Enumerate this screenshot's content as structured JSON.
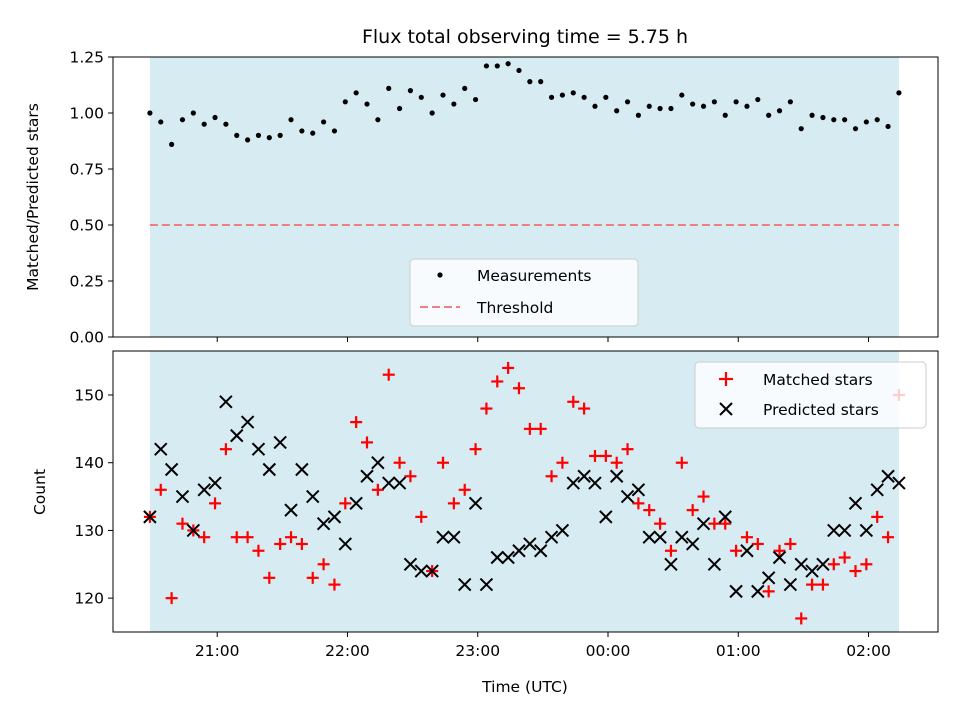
{
  "chart_data": [
    {
      "type": "scatter",
      "title": "Flux total observing time = 5.75 h",
      "ylabel": "Matched/Predicted stars",
      "xlabel": "",
      "ylim": [
        0,
        1.25
      ],
      "yticks": [
        0.0,
        0.25,
        0.5,
        0.75,
        1.0,
        1.25
      ],
      "ytick_labels": [
        "0.00",
        "0.25",
        "0.50",
        "0.75",
        "1.00",
        "1.25"
      ],
      "observing_window": [
        "20:29",
        "02:14"
      ],
      "legend": {
        "position": "lower-center",
        "entries": [
          "Measurements",
          "Threshold"
        ]
      },
      "series": [
        {
          "name": "Measurements",
          "color": "#000000",
          "marker": "dot",
          "x": [
            "20:29",
            "20:34",
            "20:39",
            "20:44",
            "20:49",
            "20:54",
            "20:59",
            "21:04",
            "21:09",
            "21:14",
            "21:19",
            "21:24",
            "21:29",
            "21:34",
            "21:39",
            "21:44",
            "21:49",
            "21:54",
            "21:59",
            "22:04",
            "22:09",
            "22:14",
            "22:19",
            "22:24",
            "22:29",
            "22:34",
            "22:39",
            "22:44",
            "22:49",
            "22:54",
            "22:59",
            "23:04",
            "23:09",
            "23:14",
            "23:19",
            "23:24",
            "23:29",
            "23:34",
            "23:39",
            "23:44",
            "23:49",
            "23:54",
            "23:59",
            "00:04",
            "00:09",
            "00:14",
            "00:19",
            "00:24",
            "00:29",
            "00:34",
            "00:39",
            "00:44",
            "00:49",
            "00:54",
            "00:59",
            "01:04",
            "01:09",
            "01:14",
            "01:19",
            "01:24",
            "01:29",
            "01:34",
            "01:39",
            "01:44",
            "01:49",
            "01:54",
            "01:59",
            "02:04",
            "02:09",
            "02:14"
          ],
          "y": [
            1.0,
            0.96,
            0.86,
            0.97,
            1.0,
            0.95,
            0.98,
            0.95,
            0.9,
            0.88,
            0.9,
            0.89,
            0.9,
            0.97,
            0.92,
            0.91,
            0.96,
            0.92,
            1.05,
            1.09,
            1.04,
            0.97,
            1.11,
            1.02,
            1.1,
            1.07,
            1.0,
            1.08,
            1.04,
            1.11,
            1.06,
            1.21,
            1.21,
            1.22,
            1.19,
            1.14,
            1.14,
            1.07,
            1.08,
            1.09,
            1.07,
            1.03,
            1.07,
            1.01,
            1.05,
            0.99,
            1.03,
            1.02,
            1.02,
            1.08,
            1.04,
            1.03,
            1.05,
            0.99,
            1.05,
            1.03,
            1.06,
            0.99,
            1.01,
            1.05,
            0.93,
            0.99,
            0.98,
            0.97,
            0.97,
            0.93,
            0.96,
            0.97,
            0.94,
            1.09
          ]
        },
        {
          "name": "Threshold",
          "color": "#f08080",
          "style": "dashed",
          "value": 0.5
        }
      ]
    },
    {
      "type": "scatter",
      "title": "",
      "ylabel": "Count",
      "xlabel": "Time (UTC)",
      "ylim": [
        115,
        156.5
      ],
      "yticks": [
        120,
        130,
        140,
        150
      ],
      "ytick_labels": [
        "120",
        "130",
        "140",
        "150"
      ],
      "xlim": [
        "20:12",
        "02:32"
      ],
      "xticks": [
        "21:00",
        "22:00",
        "23:00",
        "00:00",
        "01:00",
        "02:00"
      ],
      "xtick_labels": [
        "21:00",
        "22:00",
        "23:00",
        "00:00",
        "01:00",
        "02:00"
      ],
      "observing_window": [
        "20:29",
        "02:14"
      ],
      "legend": {
        "position": "top-right",
        "entries": [
          "Matched stars",
          "Predicted stars"
        ]
      },
      "series": [
        {
          "name": "Matched stars",
          "color": "#ff0000",
          "marker": "plus",
          "x": [
            "20:29",
            "20:34",
            "20:39",
            "20:44",
            "20:49",
            "20:54",
            "20:59",
            "21:04",
            "21:09",
            "21:14",
            "21:19",
            "21:24",
            "21:29",
            "21:34",
            "21:39",
            "21:44",
            "21:49",
            "21:54",
            "21:59",
            "22:04",
            "22:09",
            "22:14",
            "22:19",
            "22:24",
            "22:29",
            "22:34",
            "22:39",
            "22:44",
            "22:49",
            "22:54",
            "22:59",
            "23:04",
            "23:09",
            "23:14",
            "23:19",
            "23:24",
            "23:29",
            "23:34",
            "23:39",
            "23:44",
            "23:49",
            "23:54",
            "23:59",
            "00:04",
            "00:09",
            "00:14",
            "00:19",
            "00:24",
            "00:29",
            "00:34",
            "00:39",
            "00:44",
            "00:49",
            "00:54",
            "00:59",
            "01:04",
            "01:09",
            "01:14",
            "01:19",
            "01:24",
            "01:29",
            "01:34",
            "01:39",
            "01:44",
            "01:49",
            "01:54",
            "01:59",
            "02:04",
            "02:09",
            "02:14"
          ],
          "y": [
            132,
            136,
            120,
            131,
            130,
            129,
            134,
            142,
            129,
            129,
            127,
            123,
            128,
            129,
            128,
            123,
            125,
            122,
            134,
            146,
            143,
            136,
            153,
            140,
            138,
            132,
            124,
            140,
            134,
            136,
            142,
            148,
            152,
            154,
            151,
            145,
            145,
            138,
            140,
            149,
            148,
            141,
            141,
            140,
            142,
            134,
            133,
            131,
            127,
            140,
            133,
            135,
            131,
            131,
            127,
            129,
            128,
            121,
            127,
            128,
            117,
            122,
            122,
            125,
            126,
            124,
            125,
            132,
            129,
            150
          ]
        },
        {
          "name": "Predicted stars",
          "color": "#000000",
          "marker": "x",
          "x": [
            "20:29",
            "20:34",
            "20:39",
            "20:44",
            "20:49",
            "20:54",
            "20:59",
            "21:04",
            "21:09",
            "21:14",
            "21:19",
            "21:24",
            "21:29",
            "21:34",
            "21:39",
            "21:44",
            "21:49",
            "21:54",
            "21:59",
            "22:04",
            "22:09",
            "22:14",
            "22:19",
            "22:24",
            "22:29",
            "22:34",
            "22:39",
            "22:44",
            "22:49",
            "22:54",
            "22:59",
            "23:04",
            "23:09",
            "23:14",
            "23:19",
            "23:24",
            "23:29",
            "23:34",
            "23:39",
            "23:44",
            "23:49",
            "23:54",
            "23:59",
            "00:04",
            "00:09",
            "00:14",
            "00:19",
            "00:24",
            "00:29",
            "00:34",
            "00:39",
            "00:44",
            "00:49",
            "00:54",
            "00:59",
            "01:04",
            "01:09",
            "01:14",
            "01:19",
            "01:24",
            "01:29",
            "01:34",
            "01:39",
            "01:44",
            "01:49",
            "01:54",
            "01:59",
            "02:04",
            "02:09",
            "02:14"
          ],
          "y": [
            132,
            142,
            139,
            135,
            130,
            136,
            137,
            149,
            144,
            146,
            142,
            139,
            143,
            133,
            139,
            135,
            131,
            132,
            128,
            134,
            138,
            140,
            137,
            137,
            125,
            124,
            124,
            129,
            129,
            122,
            134,
            122,
            126,
            126,
            127,
            128,
            127,
            129,
            130,
            137,
            138,
            137,
            132,
            138,
            135,
            136,
            129,
            129,
            125,
            129,
            128,
            131,
            125,
            132,
            121,
            127,
            121,
            123,
            126,
            122,
            125,
            124,
            125,
            130,
            130,
            134,
            130,
            136,
            138,
            137
          ]
        }
      ]
    }
  ]
}
